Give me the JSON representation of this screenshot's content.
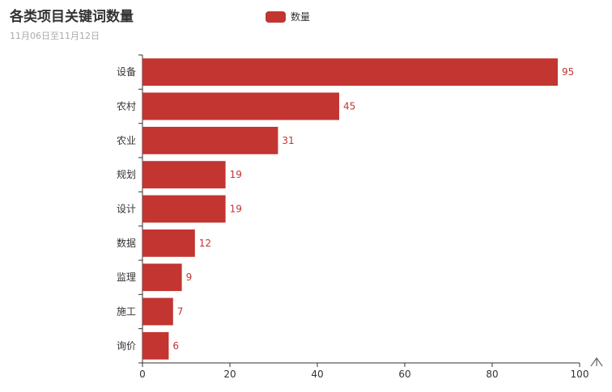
{
  "header": {
    "title": "各类项目关键词数量",
    "subtitle": "11月06日至11月12日"
  },
  "icons": {
    "toolbox": "back-to-top-arrow-icon"
  },
  "colors": {
    "bar": "#c23531",
    "axis": "#333333",
    "label": "#c23531"
  },
  "chart_data": {
    "type": "bar",
    "orientation": "horizontal",
    "title": "各类项目关键词数量",
    "subtitle": "11月06日至11月12日",
    "categories": [
      "设备",
      "农村",
      "农业",
      "规划",
      "设计",
      "数据",
      "监理",
      "施工",
      "询价"
    ],
    "series": [
      {
        "name": "数量",
        "values": [
          95,
          45,
          31,
          19,
          19,
          12,
          9,
          7,
          6
        ],
        "color": "#c23531"
      }
    ],
    "xlim": [
      0,
      100
    ],
    "xticks": [
      0,
      20,
      40,
      60,
      80,
      100
    ],
    "grid": false,
    "data_labels": true,
    "legend": "top-center"
  }
}
